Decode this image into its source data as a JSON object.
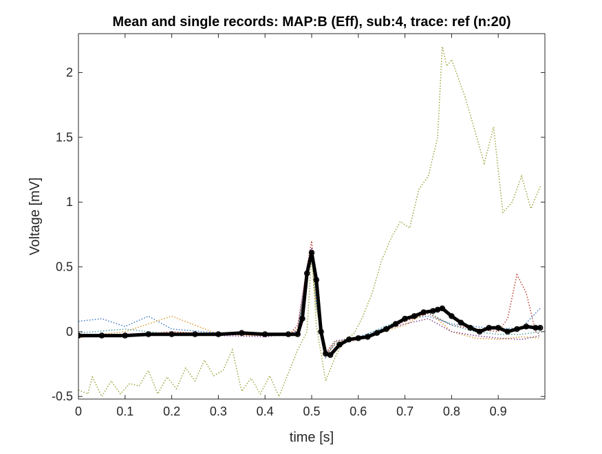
{
  "chart_data": {
    "type": "line",
    "title": "Mean and single records: MAP:B (Eff), sub:4, trace: ref (n:20)",
    "xlabel": "time [s]",
    "ylabel": "Voltage [mV]",
    "xlim": [
      0,
      1
    ],
    "ylim": [
      -0.52,
      2.3
    ],
    "x_ticks": [
      0,
      0.1,
      0.2,
      0.3,
      0.4,
      0.5,
      0.6,
      0.7,
      0.8,
      0.9
    ],
    "x_tick_labels": [
      "0",
      "0.1",
      "0.2",
      "0.3",
      "0.4",
      "0.5",
      "0.6",
      "0.7",
      "0.8",
      "0.9"
    ],
    "y_ticks": [
      -0.5,
      0,
      0.5,
      1,
      1.5,
      2
    ],
    "y_tick_labels": [
      "-0.5",
      "0",
      "0.5",
      "1",
      "1.5",
      "2"
    ],
    "grid": false,
    "legend": "none",
    "box": true,
    "series": [
      {
        "color": "#9aa13a",
        "style": "dotted",
        "x": [
          0,
          0.02,
          0.03,
          0.05,
          0.07,
          0.09,
          0.11,
          0.13,
          0.15,
          0.17,
          0.19,
          0.21,
          0.23,
          0.25,
          0.27,
          0.29,
          0.31,
          0.33,
          0.35,
          0.37,
          0.39,
          0.41,
          0.43,
          0.45,
          0.47,
          0.49,
          0.5,
          0.51,
          0.53,
          0.55,
          0.57,
          0.59,
          0.61,
          0.63,
          0.65,
          0.67,
          0.69,
          0.71,
          0.73,
          0.75,
          0.77,
          0.78,
          0.79,
          0.8,
          0.81,
          0.83,
          0.85,
          0.87,
          0.89,
          0.91,
          0.93,
          0.95,
          0.97,
          0.99
        ],
        "values": [
          -0.45,
          -0.48,
          -0.35,
          -0.5,
          -0.38,
          -0.48,
          -0.4,
          -0.42,
          -0.3,
          -0.48,
          -0.35,
          -0.44,
          -0.28,
          -0.38,
          -0.22,
          -0.34,
          -0.3,
          -0.14,
          -0.46,
          -0.36,
          -0.48,
          -0.34,
          -0.5,
          -0.32,
          -0.14,
          0.0,
          0.6,
          0.05,
          -0.38,
          -0.2,
          -0.06,
          -0.02,
          0.12,
          0.3,
          0.55,
          0.72,
          0.85,
          0.8,
          1.1,
          1.2,
          1.5,
          2.2,
          2.05,
          2.1,
          2.0,
          1.8,
          1.55,
          1.3,
          1.58,
          0.92,
          1.0,
          1.2,
          0.95,
          1.12
        ]
      },
      {
        "color": "#b5362c",
        "style": "dotted",
        "x": [
          0,
          0.1,
          0.2,
          0.3,
          0.4,
          0.45,
          0.47,
          0.49,
          0.5,
          0.51,
          0.53,
          0.55,
          0.6,
          0.65,
          0.7,
          0.75,
          0.8,
          0.85,
          0.9,
          0.92,
          0.94,
          0.96,
          0.98,
          0.99
        ],
        "values": [
          -0.02,
          -0.03,
          0.0,
          -0.02,
          -0.03,
          -0.03,
          0.05,
          0.5,
          0.7,
          0.3,
          -0.18,
          -0.1,
          -0.06,
          0.0,
          0.08,
          0.14,
          0.05,
          0.02,
          0.0,
          0.1,
          0.44,
          0.3,
          0.0,
          -0.02
        ]
      },
      {
        "color": "#3b76c4",
        "style": "dotted",
        "x": [
          0,
          0.05,
          0.1,
          0.15,
          0.2,
          0.3,
          0.4,
          0.45,
          0.47,
          0.49,
          0.5,
          0.51,
          0.53,
          0.55,
          0.6,
          0.65,
          0.7,
          0.75,
          0.8,
          0.85,
          0.9,
          0.95,
          0.99
        ],
        "values": [
          0.08,
          0.1,
          0.04,
          0.12,
          0.02,
          -0.01,
          -0.03,
          -0.02,
          0.0,
          0.45,
          0.62,
          0.2,
          -0.2,
          -0.08,
          -0.04,
          0.02,
          0.1,
          0.12,
          0.06,
          0.04,
          0.02,
          0.03,
          0.18
        ]
      },
      {
        "color": "#d99a2b",
        "style": "dotted",
        "x": [
          0,
          0.05,
          0.1,
          0.15,
          0.2,
          0.25,
          0.3,
          0.4,
          0.45,
          0.47,
          0.49,
          0.5,
          0.51,
          0.53,
          0.55,
          0.6,
          0.65,
          0.7,
          0.75,
          0.8,
          0.85,
          0.9,
          0.95,
          0.99
        ],
        "values": [
          -0.05,
          -0.02,
          0.0,
          0.06,
          0.12,
          0.05,
          -0.02,
          -0.03,
          -0.02,
          0.02,
          0.45,
          0.58,
          0.18,
          -0.16,
          -0.08,
          -0.05,
          0.0,
          0.05,
          0.16,
          0.0,
          -0.05,
          -0.06,
          -0.04,
          -0.05
        ]
      },
      {
        "color": "#7e3c8c",
        "style": "dotted",
        "x": [
          0,
          0.1,
          0.2,
          0.3,
          0.4,
          0.45,
          0.47,
          0.49,
          0.5,
          0.51,
          0.53,
          0.55,
          0.6,
          0.65,
          0.7,
          0.75,
          0.8,
          0.85,
          0.9,
          0.95,
          0.99
        ],
        "values": [
          -0.04,
          -0.02,
          -0.01,
          -0.03,
          -0.04,
          -0.02,
          0.01,
          0.5,
          0.65,
          0.25,
          -0.17,
          -0.07,
          -0.05,
          0.01,
          0.06,
          0.1,
          0.0,
          -0.03,
          -0.05,
          -0.06,
          -0.03
        ]
      },
      {
        "color": "#4aa0a0",
        "style": "dotted",
        "x": [
          0,
          0.1,
          0.2,
          0.3,
          0.4,
          0.45,
          0.47,
          0.49,
          0.5,
          0.51,
          0.53,
          0.55,
          0.6,
          0.65,
          0.7,
          0.75,
          0.8,
          0.85,
          0.9,
          0.95,
          0.99
        ],
        "values": [
          -0.01,
          0.02,
          -0.02,
          -0.01,
          -0.02,
          -0.03,
          0.0,
          0.48,
          0.6,
          0.22,
          -0.19,
          -0.09,
          -0.05,
          0.03,
          0.1,
          0.15,
          0.05,
          0.0,
          -0.02,
          -0.02,
          0.0
        ]
      },
      {
        "name": "mean",
        "color": "#000000",
        "style": "thick-marker",
        "x": [
          0,
          0.05,
          0.1,
          0.15,
          0.2,
          0.25,
          0.3,
          0.35,
          0.4,
          0.45,
          0.47,
          0.48,
          0.49,
          0.5,
          0.51,
          0.52,
          0.53,
          0.54,
          0.56,
          0.58,
          0.6,
          0.62,
          0.64,
          0.66,
          0.68,
          0.7,
          0.72,
          0.74,
          0.76,
          0.77,
          0.78,
          0.8,
          0.82,
          0.84,
          0.86,
          0.88,
          0.9,
          0.92,
          0.94,
          0.96,
          0.98,
          0.99
        ],
        "values": [
          -0.03,
          -0.03,
          -0.03,
          -0.02,
          -0.02,
          -0.02,
          -0.02,
          -0.01,
          -0.02,
          -0.02,
          -0.02,
          0.1,
          0.45,
          0.61,
          0.4,
          0.0,
          -0.17,
          -0.18,
          -0.1,
          -0.06,
          -0.05,
          -0.04,
          -0.01,
          0.02,
          0.06,
          0.1,
          0.12,
          0.15,
          0.16,
          0.17,
          0.18,
          0.12,
          0.07,
          0.03,
          0.0,
          0.03,
          0.03,
          0.0,
          0.02,
          0.04,
          0.03,
          0.03
        ]
      }
    ]
  }
}
